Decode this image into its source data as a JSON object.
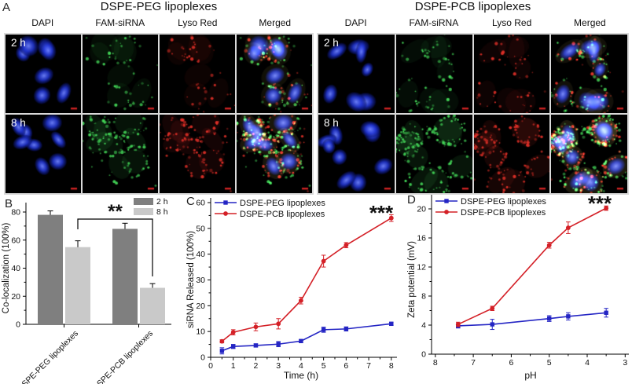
{
  "panels": {
    "a": {
      "label": "A",
      "column_headers": [
        "DAPI",
        "FAM-siRNA",
        "Lyso Red",
        "Merged"
      ],
      "groups": [
        {
          "title": "DSPE-PEG lipoplexes",
          "rows": [
            {
              "time": "2 h",
              "seed": 11,
              "cells": 7,
              "intensity": 0.45
            },
            {
              "time": "8 h",
              "seed": 29,
              "cells": 8,
              "intensity": 1.0
            }
          ]
        },
        {
          "title": "DSPE-PCB lipoplexes",
          "rows": [
            {
              "time": "2 h",
              "seed": 53,
              "cells": 7,
              "intensity": 0.55
            },
            {
              "time": "8 h",
              "seed": 71,
              "cells": 9,
              "intensity": 1.15
            }
          ]
        }
      ],
      "channels": [
        "dapi",
        "fam",
        "lyso",
        "merged"
      ],
      "channel_colors": {
        "dapi": "#2a3cf0",
        "fam": "#3dbb3d",
        "lyso": "#cf2222",
        "scalebar": "#cc2222"
      }
    },
    "b_label": "B",
    "c_label": "C",
    "d_label": "D"
  },
  "chart_data": [
    {
      "id": "B",
      "type": "bar",
      "categories": [
        "DSPE-PEG lipoplexes",
        "DSPE-PCB lipoplexes"
      ],
      "series": [
        {
          "name": "2 h",
          "color": "#7f7f7f",
          "values": [
            78,
            68
          ],
          "errors": [
            2.8,
            4
          ]
        },
        {
          "name": "8 h",
          "color": "#c9c9c9",
          "values": [
            55,
            26
          ],
          "errors": [
            4.5,
            3
          ]
        }
      ],
      "xlabel": "",
      "ylabel": "Co-localization (100%)",
      "ylim": [
        0,
        87
      ],
      "yticks": [
        0,
        20,
        40,
        60,
        80
      ],
      "legend_position": "top-right",
      "significance": {
        "label": "**",
        "note": "bracket between 8 h bars of the two lipoplex groups"
      }
    },
    {
      "id": "C",
      "type": "line",
      "x": [
        0.5,
        1,
        2,
        3,
        4,
        5,
        6,
        8
      ],
      "series": [
        {
          "name": "DSPE-PEG lipoplexes",
          "color": "#2425c4",
          "marker": "square",
          "values": [
            2.5,
            4.2,
            4.6,
            5.1,
            6.3,
            10.7,
            11.0,
            13.0
          ],
          "errors": [
            1.2,
            0.8,
            0.6,
            1.0,
            0.6,
            1.0,
            0.8,
            0.6
          ]
        },
        {
          "name": "DSPE-PCB lipoplexes",
          "color": "#d42027",
          "marker": "circle",
          "values": [
            6.2,
            9.7,
            11.8,
            13.0,
            22.0,
            37.3,
            43.5,
            54.0
          ],
          "errors": [
            0.6,
            1.0,
            1.5,
            2.0,
            1.3,
            2.3,
            1.0,
            1.3
          ]
        }
      ],
      "xlabel": "Time (h)",
      "ylabel": "siRNA Released (100%)",
      "xlim": [
        0,
        8
      ],
      "ylim": [
        0,
        60
      ],
      "xticks": [
        0,
        1,
        2,
        3,
        4,
        5,
        6,
        7,
        8
      ],
      "yticks": [
        0,
        10,
        20,
        30,
        40,
        50,
        60
      ],
      "grid": false,
      "legend_position": "top-left",
      "annotation": "***"
    },
    {
      "id": "D",
      "type": "line",
      "x": [
        7.4,
        6.5,
        5.0,
        4.5,
        3.5
      ],
      "series": [
        {
          "name": "DSPE-PEG lipoplexes",
          "color": "#2425c4",
          "marker": "square",
          "values": [
            3.9,
            4.1,
            4.9,
            5.2,
            5.7
          ],
          "errors": [
            0.3,
            0.7,
            0.4,
            0.5,
            0.6
          ]
        },
        {
          "name": "DSPE-PCB lipoplexes",
          "color": "#d42027",
          "marker": "circle",
          "values": [
            4.1,
            6.3,
            15.0,
            17.4,
            20.1
          ],
          "errors": [
            0.3,
            0.3,
            0.4,
            0.8,
            0.3
          ]
        }
      ],
      "xlabel": "pH",
      "ylabel": "Zeta potential (mV)",
      "xlim": [
        8,
        3
      ],
      "x_reversed": true,
      "ylim": [
        0,
        20
      ],
      "xticks": [
        8,
        7,
        6,
        5,
        4,
        3
      ],
      "yticks": [
        0,
        4,
        8,
        12,
        16,
        20
      ],
      "grid": false,
      "legend_position": "top-left",
      "annotation": "***"
    }
  ]
}
